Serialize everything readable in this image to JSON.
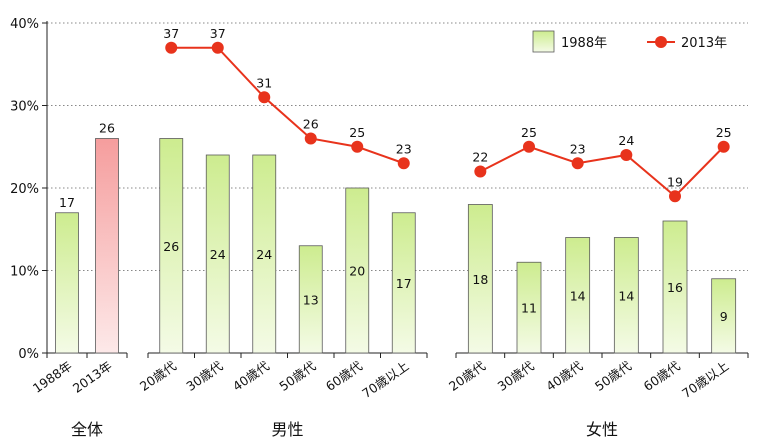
{
  "chart_data": {
    "type": "bar",
    "ylim": [
      0,
      40
    ],
    "yticks": [
      "0%",
      "10%",
      "20%",
      "30%",
      "40%"
    ],
    "grid": true,
    "legend_position": "top-right",
    "legend": [
      "1988年",
      "2013年"
    ],
    "colors": {
      "bar_1988": "#d4ef9c",
      "bar_2013": "#f7a8a8",
      "line_2013": "#e8331c"
    },
    "panels": [
      {
        "label": "全体",
        "categories": [
          "1988年",
          "2013年"
        ],
        "series": [
          {
            "name": "1988年",
            "values": [
              17
            ]
          },
          {
            "name": "2013年",
            "values": [
              26
            ]
          }
        ],
        "data_labels": [
          "17",
          "26"
        ]
      },
      {
        "label": "男性",
        "categories": [
          "20歳代",
          "30歳代",
          "40歳代",
          "50歳代",
          "60歳代",
          "70歳以上"
        ],
        "series": [
          {
            "name": "1988年",
            "values": [
              26,
              24,
              24,
              13,
              20,
              17
            ]
          },
          {
            "name": "2013年",
            "values": [
              37,
              37,
              31,
              26,
              25,
              23
            ]
          }
        ]
      },
      {
        "label": "女性",
        "categories": [
          "20歳代",
          "30歳代",
          "40歳代",
          "50歳代",
          "60歳代",
          "70歳以上"
        ],
        "series": [
          {
            "name": "1988年",
            "values": [
              18,
              11,
              14,
              14,
              16,
              9
            ]
          },
          {
            "name": "2013年",
            "values": [
              22,
              25,
              23,
              24,
              19,
              25
            ]
          }
        ]
      }
    ]
  }
}
